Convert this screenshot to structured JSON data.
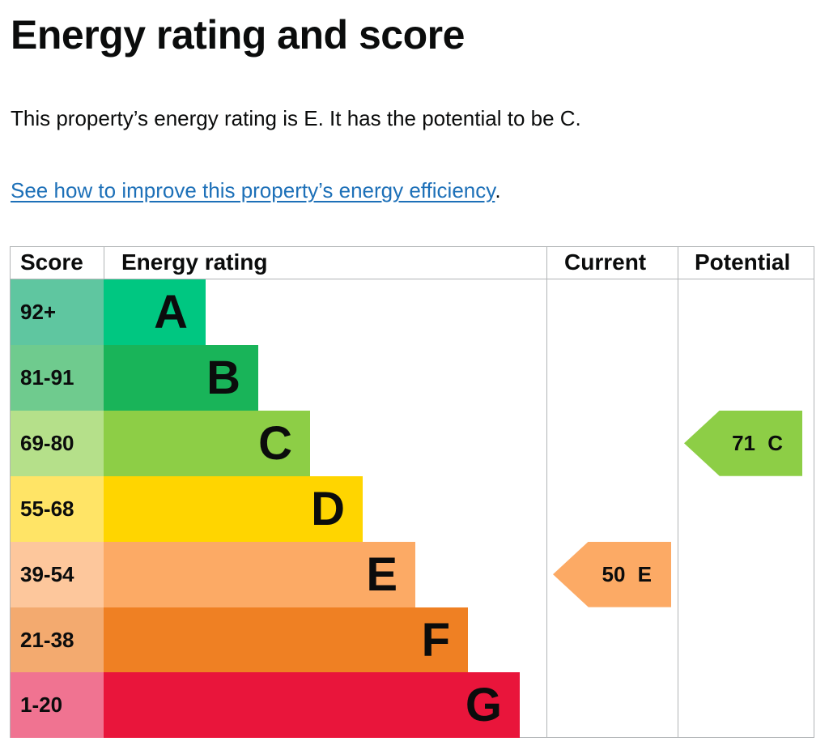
{
  "title": "Energy rating and score",
  "summary": "This property’s energy rating is E. It has the potential to be C.",
  "improve_link": "See how to improve this property’s energy efficiency",
  "improve_link_suffix": ".",
  "table": {
    "headers": {
      "score": "Score",
      "rating": "Energy rating",
      "current": "Current",
      "potential": "Potential"
    },
    "bands": [
      {
        "score": "92+",
        "letter": "A",
        "color": "#00c781",
        "score_color": "#5fc6a0"
      },
      {
        "score": "81-91",
        "letter": "B",
        "color": "#19b459",
        "score_color": "#6fcb8e"
      },
      {
        "score": "69-80",
        "letter": "C",
        "color": "#8dce46",
        "score_color": "#b5e08a"
      },
      {
        "score": "55-68",
        "letter": "D",
        "color": "#ffd500",
        "score_color": "#ffe466"
      },
      {
        "score": "39-54",
        "letter": "E",
        "color": "#fcaa65",
        "score_color": "#fdc79c"
      },
      {
        "score": "21-38",
        "letter": "F",
        "color": "#ef8023",
        "score_color": "#f3aa6f"
      },
      {
        "score": "1-20",
        "letter": "G",
        "color": "#e9153b",
        "score_color": "#f07391"
      }
    ],
    "current": {
      "label": "50 E",
      "score": 50,
      "band": "E",
      "color": "#fcaa65"
    },
    "potential": {
      "label": "71 C",
      "score": 71,
      "band": "C",
      "color": "#8dce46"
    }
  }
}
